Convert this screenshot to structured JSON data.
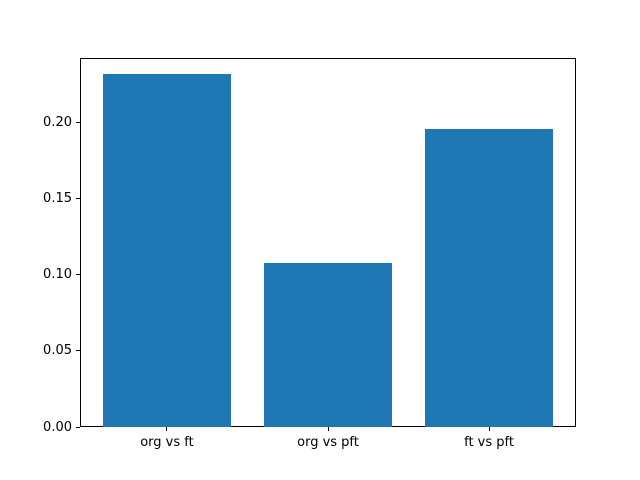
{
  "chart_data": {
    "type": "bar",
    "categories": [
      "org vs ft",
      "org vs pft",
      "ft vs pft"
    ],
    "values": [
      0.232,
      0.108,
      0.196
    ],
    "yticks": [
      0.0,
      0.05,
      0.1,
      0.15,
      0.2
    ],
    "ytick_labels": [
      "0.00",
      "0.05",
      "0.10",
      "0.15",
      "0.20"
    ],
    "ylim": [
      0,
      0.2426
    ],
    "bar_color": "#1f77b4",
    "spine_color": "#000000",
    "background_color": "#ffffff",
    "grid": false,
    "legend": null,
    "bar_width_fraction": 0.8
  }
}
